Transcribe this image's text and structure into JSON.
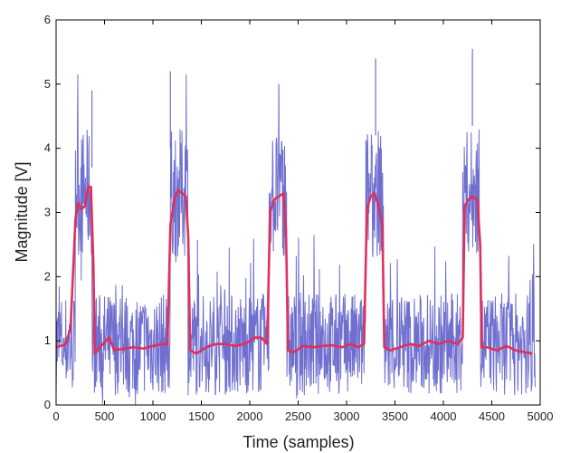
{
  "chart_data": {
    "type": "line",
    "title": "",
    "xlabel": "Time (samples)",
    "ylabel": "Magnitude [V]",
    "xlim": [
      0,
      5000
    ],
    "ylim": [
      0,
      6
    ],
    "x_ticks": [
      0,
      500,
      1000,
      1500,
      2000,
      2500,
      3000,
      3500,
      4000,
      4500,
      5000
    ],
    "y_ticks": [
      0,
      1,
      2,
      3,
      4,
      5,
      6
    ],
    "x_tick_labels": [
      "0",
      "500",
      "1000",
      "1500",
      "2000",
      "2500",
      "3000",
      "3500",
      "4000",
      "4500",
      "5000"
    ],
    "y_tick_labels": [
      "0",
      "1",
      "2",
      "3",
      "4",
      "5",
      "6"
    ],
    "grid": false,
    "legend": "none",
    "series": [
      {
        "style": "raw-signal",
        "color": "#6f6fd0",
        "x_range": [
          0,
          4950
        ],
        "baseline_level": 0.95,
        "baseline_spread": [
          0,
          2.7
        ],
        "pulse_level": 3.3,
        "pulse_spread": [
          1.5,
          5.5
        ],
        "pulses": [
          [
            200,
            370
          ],
          [
            1180,
            1360
          ],
          [
            2200,
            2380
          ],
          [
            3200,
            3380
          ],
          [
            4200,
            4380
          ]
        ],
        "peaks": [
          {
            "x": 370,
            "y": 4.9
          },
          {
            "x": 1180,
            "y": 5.2
          },
          {
            "x": 2300,
            "y": 5.0
          },
          {
            "x": 3300,
            "y": 5.4
          },
          {
            "x": 4300,
            "y": 5.55
          }
        ]
      },
      {
        "style": "smoothed-mean",
        "color": "#e0305a",
        "points": [
          [
            0,
            0.9
          ],
          [
            50,
            0.92
          ],
          [
            100,
            0.95
          ],
          [
            150,
            1.2
          ],
          [
            200,
            2.9
          ],
          [
            230,
            3.15
          ],
          [
            260,
            3.05
          ],
          [
            300,
            3.1
          ],
          [
            330,
            3.4
          ],
          [
            360,
            3.4
          ],
          [
            385,
            2.2
          ],
          [
            400,
            0.8
          ],
          [
            450,
            0.9
          ],
          [
            550,
            1.05
          ],
          [
            600,
            0.85
          ],
          [
            700,
            0.88
          ],
          [
            800,
            0.9
          ],
          [
            900,
            0.88
          ],
          [
            1000,
            0.92
          ],
          [
            1100,
            0.95
          ],
          [
            1150,
            0.95
          ],
          [
            1180,
            2.8
          ],
          [
            1220,
            3.2
          ],
          [
            1260,
            3.35
          ],
          [
            1300,
            3.3
          ],
          [
            1340,
            3.25
          ],
          [
            1365,
            2.6
          ],
          [
            1385,
            0.85
          ],
          [
            1450,
            0.8
          ],
          [
            1550,
            0.9
          ],
          [
            1650,
            0.95
          ],
          [
            1750,
            0.95
          ],
          [
            1850,
            0.92
          ],
          [
            1950,
            0.95
          ],
          [
            2050,
            1.05
          ],
          [
            2120,
            1.05
          ],
          [
            2180,
            0.95
          ],
          [
            2210,
            3.0
          ],
          [
            2250,
            3.2
          ],
          [
            2300,
            3.25
          ],
          [
            2350,
            3.3
          ],
          [
            2375,
            2.7
          ],
          [
            2395,
            0.85
          ],
          [
            2450,
            0.82
          ],
          [
            2550,
            0.92
          ],
          [
            2650,
            0.9
          ],
          [
            2750,
            0.92
          ],
          [
            2850,
            0.93
          ],
          [
            2950,
            0.9
          ],
          [
            3050,
            0.95
          ],
          [
            3120,
            0.9
          ],
          [
            3180,
            0.95
          ],
          [
            3210,
            3.05
          ],
          [
            3250,
            3.25
          ],
          [
            3290,
            3.3
          ],
          [
            3330,
            3.1
          ],
          [
            3370,
            2.8
          ],
          [
            3390,
            0.9
          ],
          [
            3450,
            0.85
          ],
          [
            3550,
            0.9
          ],
          [
            3650,
            0.95
          ],
          [
            3750,
            0.92
          ],
          [
            3850,
            1.0
          ],
          [
            3950,
            0.95
          ],
          [
            4050,
            1.0
          ],
          [
            4150,
            0.95
          ],
          [
            4200,
            1.05
          ],
          [
            4220,
            3.1
          ],
          [
            4260,
            3.2
          ],
          [
            4300,
            3.25
          ],
          [
            4350,
            3.2
          ],
          [
            4380,
            2.5
          ],
          [
            4395,
            0.9
          ],
          [
            4450,
            0.9
          ],
          [
            4550,
            0.85
          ],
          [
            4650,
            0.92
          ],
          [
            4750,
            0.85
          ],
          [
            4850,
            0.82
          ],
          [
            4920,
            0.8
          ]
        ]
      }
    ]
  }
}
